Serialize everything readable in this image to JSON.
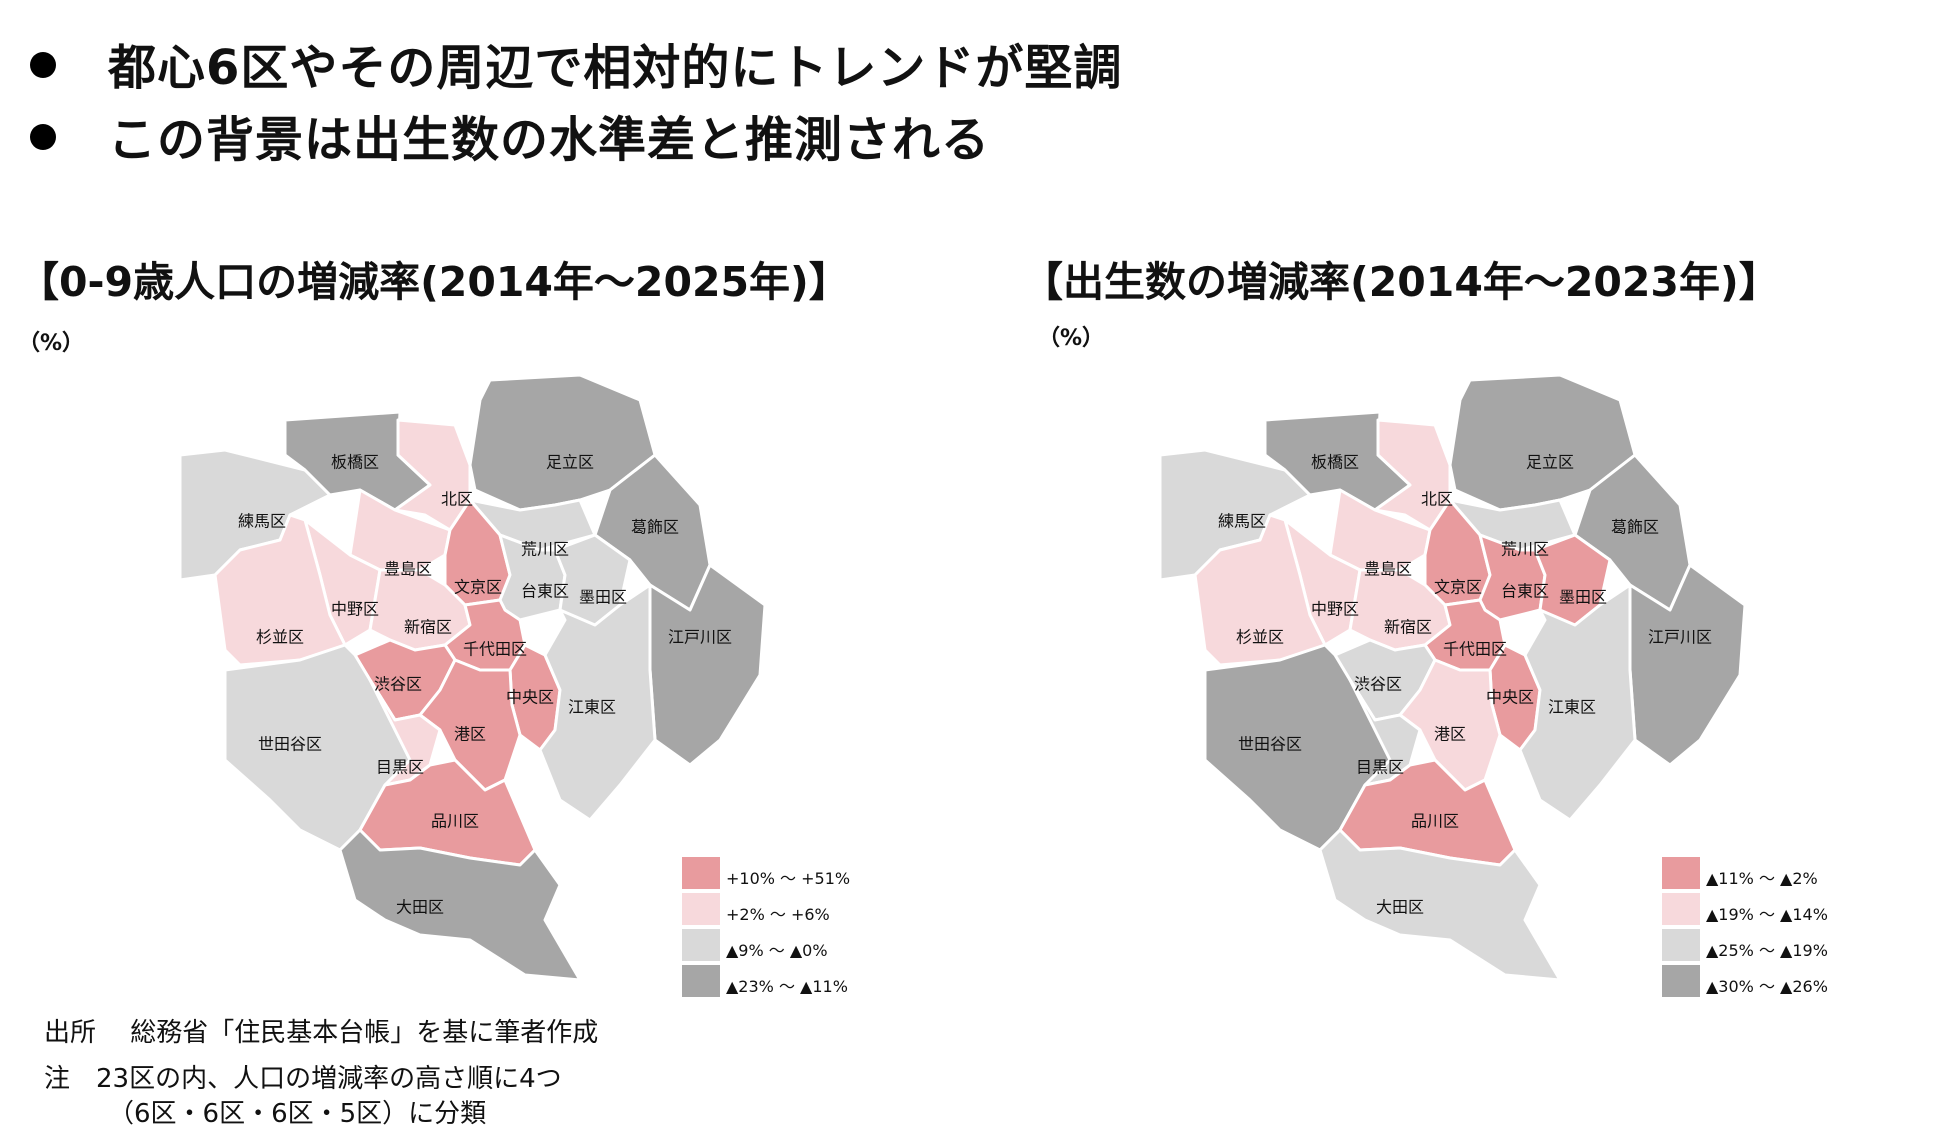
{
  "bullets": [
    "都心6区やその周辺で相対的にトレンドが堅調",
    "この背景は出生数の水準差と推測される"
  ],
  "colors": {
    "dark": "#a6a6a6",
    "light": "#d9d9d9",
    "pink": "#f7d9dc",
    "red": "#e89b9e"
  },
  "map_left": {
    "title": "【0-9歳人口の増減率(2014年～2025年)】",
    "unit": "（%）",
    "legend": [
      {
        "label": "+10% ～ +51%",
        "color": "#e89b9e"
      },
      {
        "label": "+2% ～ +6%",
        "color": "#f7d9dc"
      },
      {
        "label": "▲9% ～ ▲0%",
        "color": "#d9d9d9"
      },
      {
        "label": "▲23% ～ ▲11%",
        "color": "#a6a6a6"
      }
    ],
    "wards": {
      "itabashi": {
        "name": "板橋区",
        "color": "#a6a6a6"
      },
      "nerima": {
        "name": "練馬区",
        "color": "#d9d9d9"
      },
      "kita": {
        "name": "北区",
        "color": "#f7d9dc"
      },
      "adachi": {
        "name": "足立区",
        "color": "#a6a6a6"
      },
      "katsushika": {
        "name": "葛飾区",
        "color": "#a6a6a6"
      },
      "arakawa": {
        "name": "荒川区",
        "color": "#d9d9d9"
      },
      "toshima": {
        "name": "豊島区",
        "color": "#f7d9dc"
      },
      "bunkyo": {
        "name": "文京区",
        "color": "#e89b9e"
      },
      "taito": {
        "name": "台東区",
        "color": "#d9d9d9"
      },
      "sumida": {
        "name": "墨田区",
        "color": "#d9d9d9"
      },
      "nakano": {
        "name": "中野区",
        "color": "#f7d9dc"
      },
      "suginami": {
        "name": "杉並区",
        "color": "#f7d9dc"
      },
      "shinjuku": {
        "name": "新宿区",
        "color": "#f7d9dc"
      },
      "chiyoda": {
        "name": "千代田区",
        "color": "#e89b9e"
      },
      "edogawa": {
        "name": "江戸川区",
        "color": "#a6a6a6"
      },
      "shibuya": {
        "name": "渋谷区",
        "color": "#e89b9e"
      },
      "chuo": {
        "name": "中央区",
        "color": "#e89b9e"
      },
      "koto": {
        "name": "江東区",
        "color": "#d9d9d9"
      },
      "minato": {
        "name": "港区",
        "color": "#e89b9e"
      },
      "setagaya": {
        "name": "世田谷区",
        "color": "#d9d9d9"
      },
      "meguro": {
        "name": "目黒区",
        "color": "#f7d9dc"
      },
      "shinagawa": {
        "name": "品川区",
        "color": "#e89b9e"
      },
      "ota": {
        "name": "大田区",
        "color": "#a6a6a6"
      }
    }
  },
  "map_right": {
    "title": "【出生数の増減率(2014年～2023年)】",
    "unit": "（%）",
    "legend": [
      {
        "label": "▲11% ～ ▲2%",
        "color": "#e89b9e"
      },
      {
        "label": "▲19% ～ ▲14%",
        "color": "#f7d9dc"
      },
      {
        "label": "▲25% ～ ▲19%",
        "color": "#d9d9d9"
      },
      {
        "label": "▲30% ～ ▲26%",
        "color": "#a6a6a6"
      }
    ],
    "wards": {
      "itabashi": {
        "name": "板橋区",
        "color": "#a6a6a6"
      },
      "nerima": {
        "name": "練馬区",
        "color": "#d9d9d9"
      },
      "kita": {
        "name": "北区",
        "color": "#f7d9dc"
      },
      "adachi": {
        "name": "足立区",
        "color": "#a6a6a6"
      },
      "katsushika": {
        "name": "葛飾区",
        "color": "#a6a6a6"
      },
      "arakawa": {
        "name": "荒川区",
        "color": "#d9d9d9"
      },
      "toshima": {
        "name": "豊島区",
        "color": "#f7d9dc"
      },
      "bunkyo": {
        "name": "文京区",
        "color": "#e89b9e"
      },
      "taito": {
        "name": "台東区",
        "color": "#e89b9e"
      },
      "sumida": {
        "name": "墨田区",
        "color": "#e89b9e"
      },
      "nakano": {
        "name": "中野区",
        "color": "#f7d9dc"
      },
      "suginami": {
        "name": "杉並区",
        "color": "#f7d9dc"
      },
      "shinjuku": {
        "name": "新宿区",
        "color": "#f7d9dc"
      },
      "chiyoda": {
        "name": "千代田区",
        "color": "#e89b9e"
      },
      "edogawa": {
        "name": "江戸川区",
        "color": "#a6a6a6"
      },
      "shibuya": {
        "name": "渋谷区",
        "color": "#d9d9d9"
      },
      "chuo": {
        "name": "中央区",
        "color": "#e89b9e"
      },
      "koto": {
        "name": "江東区",
        "color": "#d9d9d9"
      },
      "minato": {
        "name": "港区",
        "color": "#f7d9dc"
      },
      "setagaya": {
        "name": "世田谷区",
        "color": "#a6a6a6"
      },
      "meguro": {
        "name": "目黒区",
        "color": "#d9d9d9"
      },
      "shinagawa": {
        "name": "品川区",
        "color": "#e89b9e"
      },
      "ota": {
        "name": "大田区",
        "color": "#d9d9d9"
      }
    }
  },
  "notes": {
    "source": "出所　 総務省「住民基本台帳」を基に筆者作成",
    "note_line1": "注　23区の内、人口の増減率の高さ順に4つ",
    "note_line2": "（6区・6区・6区・5区）に分類"
  }
}
